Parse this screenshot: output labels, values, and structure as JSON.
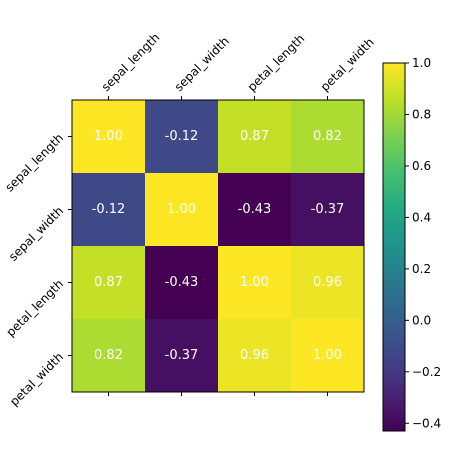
{
  "chart_data": {
    "type": "heatmap",
    "title": "",
    "xlabel": "",
    "ylabel": "",
    "x_categories": [
      "sepal_length",
      "sepal_width",
      "petal_length",
      "petal_width"
    ],
    "y_categories": [
      "sepal_length",
      "sepal_width",
      "petal_length",
      "petal_width"
    ],
    "values": [
      [
        1.0,
        -0.12,
        0.87,
        0.82
      ],
      [
        -0.12,
        1.0,
        -0.43,
        -0.37
      ],
      [
        0.87,
        -0.43,
        1.0,
        0.96
      ],
      [
        0.82,
        -0.37,
        0.96,
        1.0
      ]
    ],
    "cell_labels": [
      [
        "1.00",
        "-0.12",
        "0.87",
        "0.82"
      ],
      [
        "-0.12",
        "1.00",
        "-0.43",
        "-0.37"
      ],
      [
        "0.87",
        "-0.43",
        "1.00",
        "0.96"
      ],
      [
        "0.82",
        "-0.37",
        "0.96",
        "1.00"
      ]
    ],
    "colormap": "viridis",
    "color_range": [
      -0.43,
      1.0
    ],
    "colorbar": {
      "ticks": [
        1.0,
        0.8,
        0.6,
        0.4,
        0.2,
        0.0,
        -0.2,
        -0.4
      ],
      "tick_labels": [
        "1.0",
        "0.8",
        "0.6",
        "0.4",
        "0.2",
        "0.0",
        "−0.2",
        "−0.4"
      ],
      "position": "right"
    },
    "x_tick_position": "top",
    "grid": false,
    "cell_text_color": "#ffffff"
  }
}
